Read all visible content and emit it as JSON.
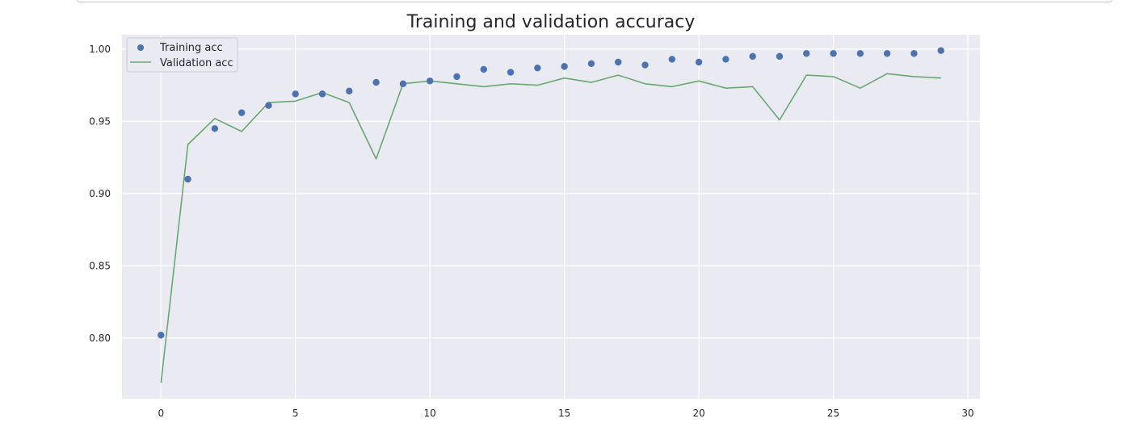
{
  "chart_data": {
    "type": "line",
    "title": "Training and validation accuracy",
    "xlabel": "",
    "ylabel": "",
    "xlim": [
      -1.45,
      30.45
    ],
    "ylim": [
      0.758,
      1.01
    ],
    "x_ticks": [
      0,
      5,
      10,
      15,
      20,
      25,
      30
    ],
    "y_ticks": [
      0.8,
      0.85,
      0.9,
      0.95,
      1.0
    ],
    "y_tick_labels": [
      "0.80",
      "0.85",
      "0.90",
      "0.95",
      "1.00"
    ],
    "grid": true,
    "legend_position": "top-left",
    "series": [
      {
        "name": "Training acc",
        "style": "markers",
        "color": "#4c72b0",
        "x": [
          0,
          1,
          2,
          3,
          4,
          5,
          6,
          7,
          8,
          9,
          10,
          11,
          12,
          13,
          14,
          15,
          16,
          17,
          18,
          19,
          20,
          21,
          22,
          23,
          24,
          25,
          26,
          27,
          28,
          29
        ],
        "values": [
          0.802,
          0.91,
          0.945,
          0.956,
          0.961,
          0.969,
          0.969,
          0.971,
          0.977,
          0.976,
          0.978,
          0.981,
          0.986,
          0.984,
          0.987,
          0.988,
          0.99,
          0.991,
          0.989,
          0.993,
          0.991,
          0.993,
          0.995,
          0.995,
          0.997,
          0.997,
          0.997,
          0.997,
          0.997,
          0.999
        ]
      },
      {
        "name": "Validation acc",
        "style": "line",
        "color": "#6aa872",
        "x": [
          0,
          1,
          2,
          3,
          4,
          5,
          6,
          7,
          8,
          9,
          10,
          11,
          12,
          13,
          14,
          15,
          16,
          17,
          18,
          19,
          20,
          21,
          22,
          23,
          24,
          25,
          26,
          27,
          28,
          29
        ],
        "values": [
          0.769,
          0.934,
          0.952,
          0.943,
          0.963,
          0.964,
          0.97,
          0.963,
          0.924,
          0.976,
          0.978,
          0.976,
          0.974,
          0.976,
          0.975,
          0.98,
          0.977,
          0.982,
          0.976,
          0.974,
          0.978,
          0.973,
          0.974,
          0.951,
          0.982,
          0.981,
          0.973,
          0.983,
          0.981,
          0.98
        ]
      }
    ]
  }
}
